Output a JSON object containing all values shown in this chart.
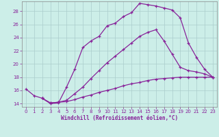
{
  "xlabel": "Windchill (Refroidissement éolien,°C)",
  "ylabel": "",
  "background_color": "#cceee8",
  "grid_color": "#aacccc",
  "line_color": "#882299",
  "xlim": [
    -0.5,
    23.5
  ],
  "ylim": [
    13.5,
    29.5
  ],
  "xticks": [
    0,
    1,
    2,
    3,
    4,
    5,
    6,
    7,
    8,
    9,
    10,
    11,
    12,
    13,
    14,
    15,
    16,
    17,
    18,
    19,
    20,
    21,
    22,
    23
  ],
  "yticks": [
    14,
    16,
    18,
    20,
    22,
    24,
    26,
    28
  ],
  "line1_x": [
    0,
    1,
    2,
    3,
    4,
    5,
    6,
    7,
    8,
    9,
    10,
    11,
    12,
    13,
    14,
    15,
    16,
    17,
    18,
    19,
    20,
    21,
    22,
    23
  ],
  "line1_y": [
    16.2,
    15.2,
    14.8,
    14.0,
    14.1,
    16.5,
    19.2,
    22.5,
    23.5,
    24.2,
    25.8,
    26.2,
    27.2,
    27.8,
    29.2,
    29.0,
    28.8,
    28.5,
    28.2,
    27.0,
    23.2,
    21.0,
    19.2,
    18.0
  ],
  "line2_x": [
    2,
    3,
    4,
    5,
    6,
    7,
    8,
    9,
    10,
    11,
    12,
    13,
    14,
    15,
    16,
    17,
    18,
    19,
    20,
    21,
    22,
    23
  ],
  "line2_y": [
    14.8,
    14.1,
    14.2,
    14.5,
    15.5,
    16.5,
    17.8,
    19.0,
    20.2,
    21.2,
    22.2,
    23.2,
    24.2,
    24.8,
    25.2,
    23.5,
    21.5,
    19.5,
    19.0,
    18.8,
    18.5,
    18.0
  ],
  "line3_x": [
    2,
    3,
    4,
    5,
    6,
    7,
    8,
    9,
    10,
    11,
    12,
    13,
    14,
    15,
    16,
    17,
    18,
    19,
    20,
    21,
    22,
    23
  ],
  "line3_y": [
    14.8,
    14.1,
    14.2,
    14.3,
    14.6,
    15.0,
    15.3,
    15.7,
    16.0,
    16.3,
    16.7,
    17.0,
    17.2,
    17.5,
    17.7,
    17.8,
    17.9,
    18.0,
    18.0,
    18.0,
    18.0,
    18.0
  ]
}
